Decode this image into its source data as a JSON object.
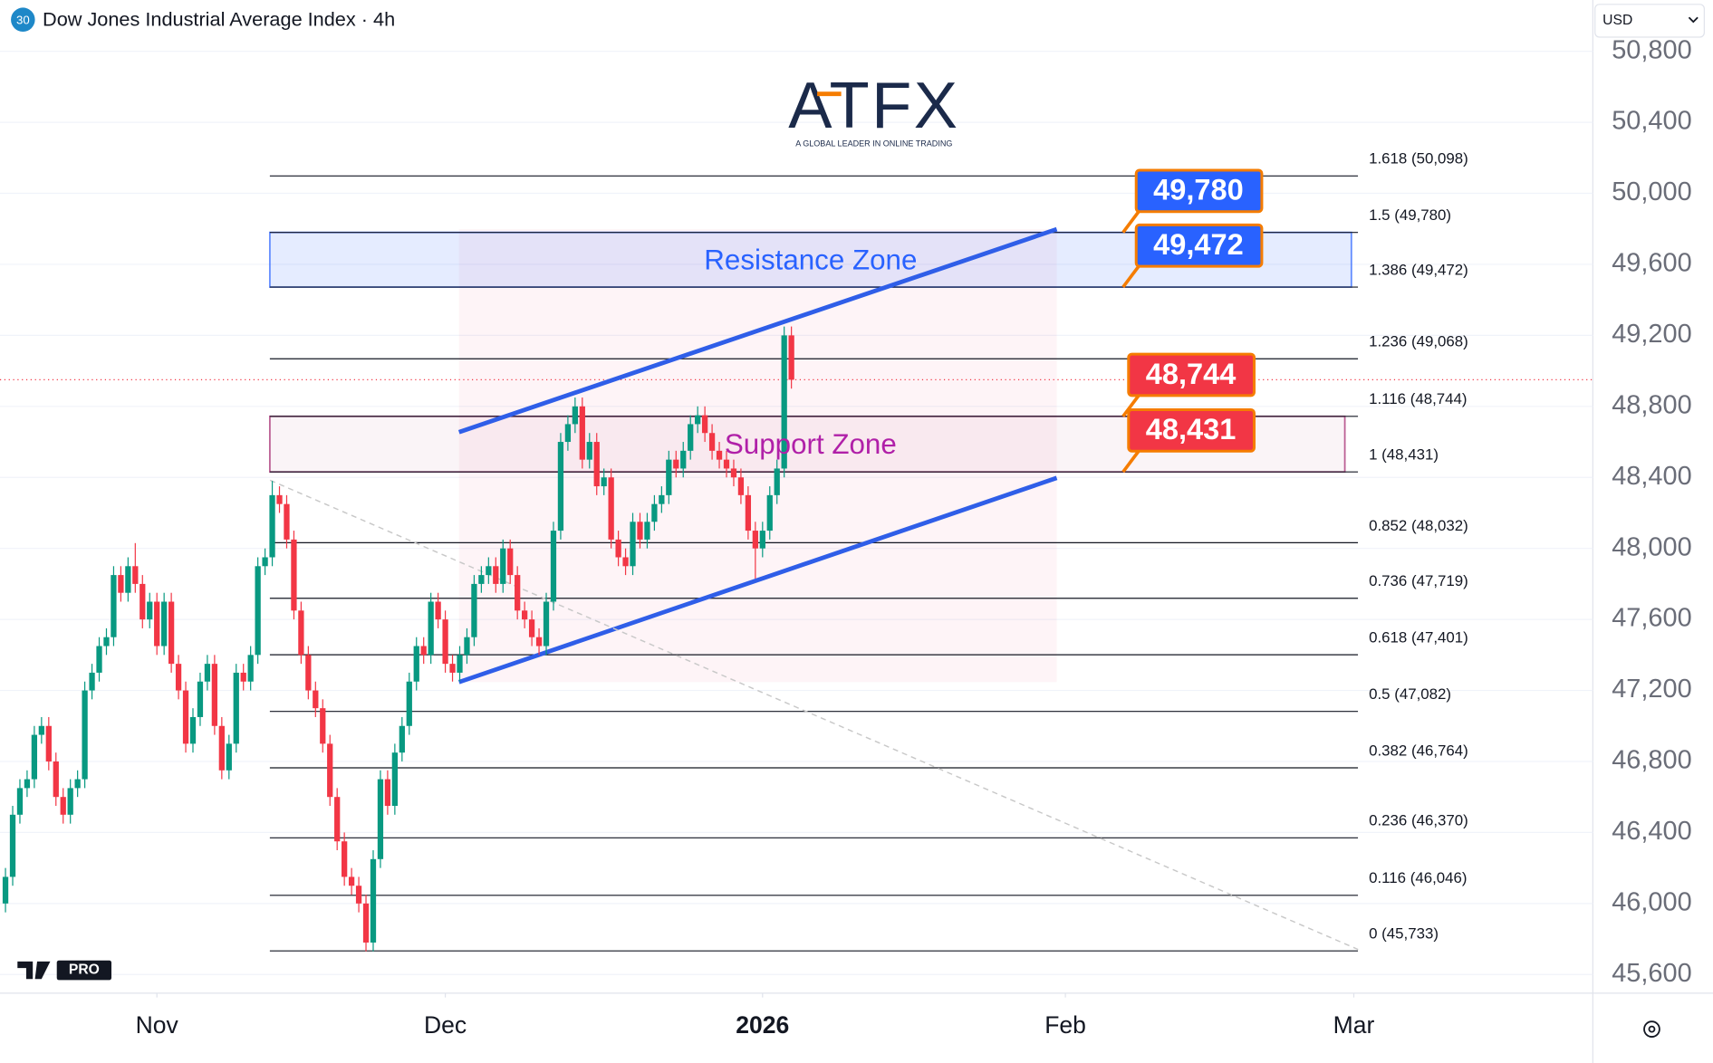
{
  "header": {
    "badge": "30",
    "title": "Dow Jones Industrial Average Index · 4h",
    "currency": "USD"
  },
  "branding": {
    "logo": "ATFX",
    "tagline": "A GLOBAL LEADER IN ONLINE TRADING",
    "platform": "PRO"
  },
  "chart_data": {
    "type": "candlestick",
    "up_color": "#089981",
    "down_color": "#f23645",
    "open": [
      46000,
      46150,
      46500,
      46650,
      46700,
      46950,
      47000,
      46800,
      46600,
      46500,
      46650,
      46700,
      47200,
      47300,
      47450,
      47500,
      47850,
      47750,
      47900,
      47800,
      47600,
      47700,
      47450,
      47700,
      47350,
      47200,
      46900,
      47050,
      47250,
      47350,
      47000,
      46750,
      46900,
      47300,
      47250,
      47400,
      47900,
      47950,
      48300,
      48250,
      48050,
      47650,
      47400,
      47200,
      47100,
      46900,
      46600,
      46350,
      46150,
      46100,
      46000,
      45780,
      46250,
      46700,
      46550,
      46850,
      47000,
      47250,
      47450,
      47400,
      47700,
      47600,
      47350,
      47300,
      47400,
      47500,
      47800,
      47850,
      47900,
      47800,
      48000,
      47850,
      47650,
      47600,
      47500,
      47450,
      47700,
      48100,
      48600,
      48700,
      48800,
      48500,
      48600,
      48350,
      48400,
      48050,
      47950,
      47900,
      48150,
      48050,
      48150,
      48250,
      48300,
      48500,
      48450,
      48550,
      48700,
      48750,
      48650,
      48550,
      48500,
      48450,
      48400,
      48300,
      48100,
      48000,
      48100,
      48300,
      48450,
      49200
    ],
    "high": [
      46200,
      46550,
      46700,
      46750,
      47000,
      47050,
      47050,
      46850,
      46650,
      46700,
      46750,
      47250,
      47350,
      47500,
      47550,
      47900,
      47900,
      47950,
      48030,
      47850,
      47750,
      47750,
      47750,
      47750,
      47400,
      47250,
      47100,
      47300,
      47400,
      47400,
      47050,
      46950,
      47350,
      47350,
      47450,
      47950,
      48000,
      48380,
      48350,
      48300,
      48100,
      47700,
      47450,
      47250,
      47150,
      46950,
      46650,
      46400,
      46200,
      46150,
      46050,
      46300,
      46750,
      46750,
      46900,
      47050,
      47300,
      47500,
      47500,
      47750,
      47750,
      47650,
      47400,
      47450,
      47550,
      47850,
      47900,
      47950,
      47950,
      48050,
      48050,
      47900,
      47700,
      47650,
      47550,
      47750,
      48150,
      48650,
      48750,
      48850,
      48850,
      48650,
      48650,
      48450,
      48450,
      48100,
      48000,
      48200,
      48200,
      48200,
      48300,
      48350,
      48550,
      48550,
      48600,
      48750,
      48800,
      48800,
      48700,
      48600,
      48550,
      48500,
      48450,
      48350,
      48150,
      48150,
      48350,
      48500,
      49250,
      49250
    ],
    "low": [
      45950,
      46100,
      46450,
      46600,
      46650,
      46900,
      46750,
      46550,
      46450,
      46450,
      46600,
      46650,
      47150,
      47250,
      47400,
      47450,
      47700,
      47700,
      47750,
      47550,
      47550,
      47400,
      47400,
      47300,
      47150,
      46850,
      46850,
      47000,
      47200,
      46950,
      46700,
      46700,
      46850,
      47200,
      47200,
      47350,
      47850,
      47900,
      48200,
      48000,
      47600,
      47350,
      47150,
      47050,
      46850,
      46550,
      46300,
      46100,
      46050,
      45950,
      45730,
      45730,
      46200,
      46500,
      46500,
      46800,
      46950,
      47200,
      47350,
      47350,
      47550,
      47300,
      47250,
      47250,
      47350,
      47450,
      47750,
      47800,
      47750,
      47750,
      47800,
      47600,
      47550,
      47450,
      47400,
      47400,
      47650,
      48050,
      48550,
      48650,
      48450,
      48450,
      48300,
      48300,
      48000,
      47900,
      47850,
      47850,
      48000,
      48000,
      48100,
      48200,
      48250,
      48400,
      48400,
      48500,
      48650,
      48600,
      48500,
      48450,
      48400,
      48350,
      48250,
      48050,
      47830,
      47950,
      48050,
      48250,
      48400,
      48900
    ],
    "close": [
      46150,
      46500,
      46650,
      46700,
      46950,
      47000,
      46800,
      46600,
      46500,
      46650,
      46700,
      47200,
      47300,
      47450,
      47500,
      47850,
      47750,
      47900,
      47800,
      47600,
      47700,
      47450,
      47700,
      47350,
      47200,
      46900,
      47050,
      47250,
      47350,
      47000,
      46750,
      46900,
      47300,
      47250,
      47400,
      47900,
      47950,
      48300,
      48250,
      48050,
      47650,
      47400,
      47200,
      47100,
      46900,
      46600,
      46350,
      46150,
      46100,
      46000,
      45780,
      46250,
      46700,
      46550,
      46850,
      47000,
      47250,
      47450,
      47400,
      47700,
      47600,
      47350,
      47300,
      47400,
      47500,
      47800,
      47850,
      47900,
      47800,
      48000,
      47850,
      47650,
      47600,
      47500,
      47450,
      47700,
      48100,
      48600,
      48700,
      48800,
      48500,
      48600,
      48350,
      48400,
      48050,
      47950,
      47900,
      48150,
      48050,
      48150,
      48250,
      48300,
      48500,
      48450,
      48550,
      48700,
      48750,
      48650,
      48550,
      48500,
      48450,
      48400,
      48300,
      48100,
      48000,
      48100,
      48300,
      48450,
      49200,
      48950
    ],
    "xlim": [
      -0.76,
      220.15
    ],
    "xticks": [
      {
        "value": 21,
        "label": "Nov"
      },
      {
        "value": 61,
        "label": "Dec"
      },
      {
        "value": 105,
        "label": "2026",
        "bold": true
      },
      {
        "value": 147,
        "label": "Feb"
      },
      {
        "value": 187,
        "label": "Mar"
      }
    ],
    "ylim": [
      45495,
      51089
    ],
    "yticks": [
      {
        "value": 45600,
        "label": "45,600"
      },
      {
        "value": 46000,
        "label": "46,000"
      },
      {
        "value": 46400,
        "label": "46,400"
      },
      {
        "value": 46800,
        "label": "46,800"
      },
      {
        "value": 47200,
        "label": "47,200"
      },
      {
        "value": 47600,
        "label": "47,600"
      },
      {
        "value": 48000,
        "label": "48,000"
      },
      {
        "value": 48400,
        "label": "48,400"
      },
      {
        "value": 48800,
        "label": "48,800"
      },
      {
        "value": 49200,
        "label": "49,200"
      },
      {
        "value": 49600,
        "label": "49,600"
      },
      {
        "value": 50000,
        "label": "50,000"
      },
      {
        "value": 50400,
        "label": "50,400"
      },
      {
        "value": 50800,
        "label": "50,800"
      }
    ],
    "grid": true,
    "fib_levels": [
      {
        "label": "1.618 (50,098)",
        "value": 50098
      },
      {
        "label": "1.5 (49,780)",
        "value": 49780
      },
      {
        "label": "1.386 (49,472)",
        "value": 49472
      },
      {
        "label": "1.236 (49,068)",
        "value": 49068
      },
      {
        "label": "1.116 (48,744)",
        "value": 48744
      },
      {
        "label": "1 (48,431)",
        "value": 48431
      },
      {
        "label": "0.852 (48,032)",
        "value": 48032
      },
      {
        "label": "0.736 (47,719)",
        "value": 47719
      },
      {
        "label": "0.618 (47,401)",
        "value": 47401
      },
      {
        "label": "0.5 (47,082)",
        "value": 47082
      },
      {
        "label": "0.382 (46,764)",
        "value": 46764
      },
      {
        "label": "0.236 (46,370)",
        "value": 46370
      },
      {
        "label": "0.116 (46,046)",
        "value": 46046
      },
      {
        "label": "0 (45,733)",
        "value": 45733
      }
    ],
    "zones": [
      {
        "label": "Resistance Zone",
        "low": 49472,
        "high": 49780,
        "color": "#2962ff"
      },
      {
        "label": "Support Zone",
        "low": 48431,
        "high": 48744,
        "color": "#a0206a"
      }
    ],
    "price_tags": [
      {
        "value": 49780,
        "label": "49,780",
        "color": "#2962ff"
      },
      {
        "value": 49472,
        "label": "49,472",
        "color": "#2962ff"
      },
      {
        "value": 48744,
        "label": "48,744",
        "color": "#f23645"
      },
      {
        "value": 48431,
        "label": "48,431",
        "color": "#f23645"
      }
    ],
    "trendlines": [
      {
        "x": [
          62.9,
          145.8
        ],
        "y": [
          48655,
          49798
        ],
        "color": "#2f5ee8"
      },
      {
        "x": [
          62.9,
          145.8
        ],
        "y": [
          47247,
          48397
        ],
        "color": "#2f5ee8"
      },
      {
        "x": [
          36.7,
          187.6
        ],
        "y": [
          48384,
          45741
        ],
        "color": "#c8c8c8",
        "dashed": true
      }
    ]
  }
}
